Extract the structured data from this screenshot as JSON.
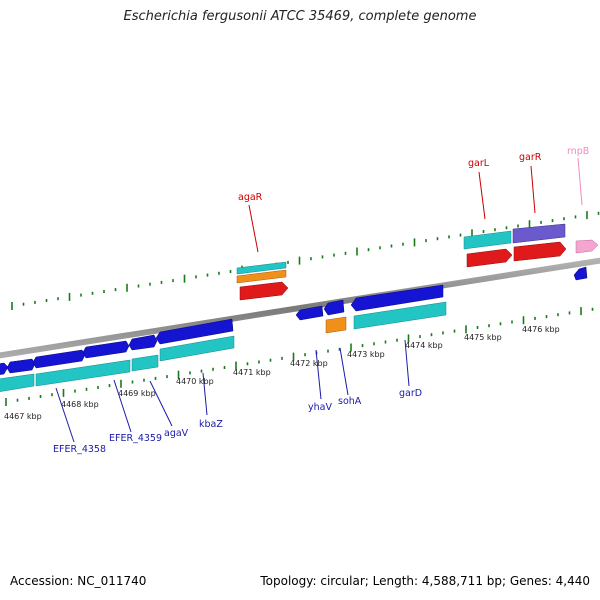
{
  "title": "Escherichia fergusonii ATCC 35469, complete genome",
  "footer": {
    "accession": "Accession: NC_011740",
    "info": "Topology: circular; Length: 4,588,711 bp; Genes: 4,440"
  },
  "colors": {
    "backbone": "#8c8c8c",
    "ticks": "#1a7a1a",
    "blue_gene": "#1414d2",
    "cyan_gene": "#22c4c4",
    "red_gene": "#e01a1a",
    "orange_gene": "#f0901a",
    "purple_gene": "#6a5acd",
    "pink_gene": "#f4a6cf",
    "label_blue": "#1a1aa8",
    "label_red": "#cc0000",
    "label_pink": "#f08cc0"
  },
  "axis_labels": [
    "4467 kbp",
    "4468 kbp",
    "4469 kbp",
    "4470 kbp",
    "4471 kbp",
    "4472 kbp",
    "4473 kbp",
    "4474 kbp",
    "4475 kbp",
    "4476 kbp"
  ],
  "gene_labels": {
    "EFER_4358": "EFER_4358",
    "EFER_4359": "EFER_4359",
    "agaV": "agaV",
    "kbaZ": "kbaZ",
    "yhaV": "yhaV",
    "sohA": "sohA",
    "garD": "garD",
    "agaR": "agaR",
    "garL": "garL",
    "garR": "garR",
    "rnpB": "rnpB"
  }
}
